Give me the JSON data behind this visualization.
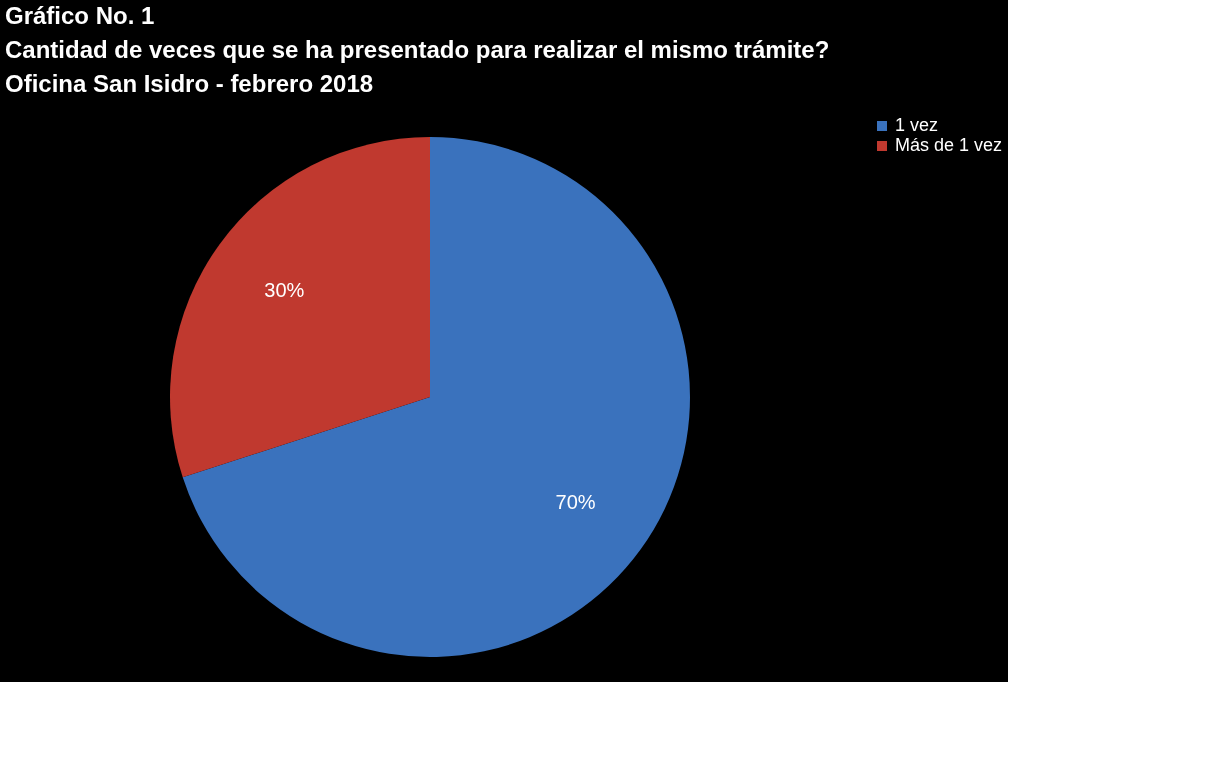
{
  "chart_data": {
    "type": "pie",
    "title": "Gráfico No. 1\nCantidad de veces que se ha presentado para realizar el mismo trámite?\nOficina San Isidro - febrero 2018",
    "categories": [
      "1 vez",
      "Más de 1 vez"
    ],
    "values": [
      70,
      30
    ],
    "colors": [
      "#3a72bd",
      "#c0392f"
    ],
    "value_labels": [
      "70%",
      "30%"
    ],
    "legend": "right"
  }
}
